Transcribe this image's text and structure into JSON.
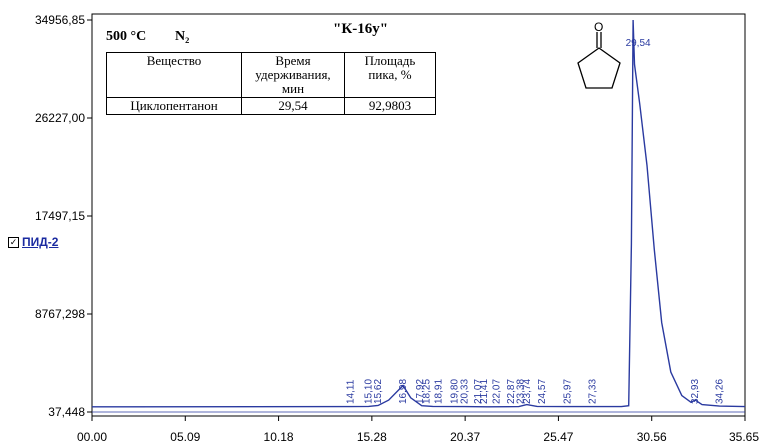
{
  "header": {
    "temperature": "500 °C",
    "gas": "N₂",
    "sample": "\"К-16у\""
  },
  "legend": {
    "checked": "✓",
    "name": "ПИД-2"
  },
  "table": {
    "headers": [
      "Вещество",
      "Время удерживания, мин",
      "Площадь пика, %"
    ],
    "row": [
      "Циклопентанон",
      "29,54",
      "92,9803"
    ]
  },
  "chart_data": {
    "type": "line",
    "xlim": [
      0.0,
      35.65
    ],
    "ylim": [
      37.448,
      34956.85
    ],
    "x_tick_labels": [
      "00.00",
      "05.09",
      "10.18",
      "15.28",
      "20.37",
      "25.47",
      "30.56",
      "35.65"
    ],
    "y_tick_labels": [
      "37,448",
      "8767,298",
      "17497,15",
      "26227,00",
      "34956,85"
    ],
    "series": [
      {
        "name": "ПИД-2",
        "color": "#2a3aa0",
        "points": [
          [
            0.0,
            500
          ],
          [
            14.11,
            520
          ],
          [
            15.1,
            540
          ],
          [
            15.62,
            620
          ],
          [
            16.2,
            1100
          ],
          [
            16.98,
            2400
          ],
          [
            17.4,
            1300
          ],
          [
            18.0,
            600
          ],
          [
            18.6,
            540
          ],
          [
            20.33,
            520
          ],
          [
            21.6,
            500
          ],
          [
            23.3,
            520
          ],
          [
            23.74,
            700
          ],
          [
            24.3,
            540
          ],
          [
            25.97,
            520
          ],
          [
            27.33,
            520
          ],
          [
            28.9,
            520
          ],
          [
            29.3,
            600
          ],
          [
            29.45,
            15000
          ],
          [
            29.54,
            34956
          ],
          [
            29.62,
            31000
          ],
          [
            29.9,
            27500
          ],
          [
            30.3,
            22000
          ],
          [
            30.7,
            14500
          ],
          [
            31.1,
            8000
          ],
          [
            31.6,
            3600
          ],
          [
            32.2,
            1500
          ],
          [
            32.7,
            900
          ],
          [
            32.93,
            1100
          ],
          [
            33.3,
            700
          ],
          [
            34.26,
            560
          ],
          [
            35.65,
            520
          ]
        ]
      }
    ],
    "peak_labels": [
      {
        "x": 14.11,
        "label": "14,11"
      },
      {
        "x": 15.1,
        "label": "15,10"
      },
      {
        "x": 15.62,
        "label": "15,62"
      },
      {
        "x": 16.98,
        "label": "16,98"
      },
      {
        "x": 17.92,
        "label": "17,92"
      },
      {
        "x": 18.25,
        "label": "18,25"
      },
      {
        "x": 18.91,
        "label": "18,91"
      },
      {
        "x": 19.8,
        "label": "19,80"
      },
      {
        "x": 20.33,
        "label": "20,33"
      },
      {
        "x": 21.07,
        "label": "21,07"
      },
      {
        "x": 21.41,
        "label": "21,41"
      },
      {
        "x": 22.07,
        "label": "22,07"
      },
      {
        "x": 22.87,
        "label": "22,87"
      },
      {
        "x": 23.38,
        "label": "23,38"
      },
      {
        "x": 23.74,
        "label": "23,74"
      },
      {
        "x": 24.57,
        "label": "24,57"
      },
      {
        "x": 25.97,
        "label": "25,97"
      },
      {
        "x": 27.33,
        "label": "27,33"
      },
      {
        "x": 29.54,
        "label": "29,54",
        "horizontal": true
      },
      {
        "x": 32.93,
        "label": "32,93"
      },
      {
        "x": 34.26,
        "label": "34,26"
      }
    ]
  }
}
